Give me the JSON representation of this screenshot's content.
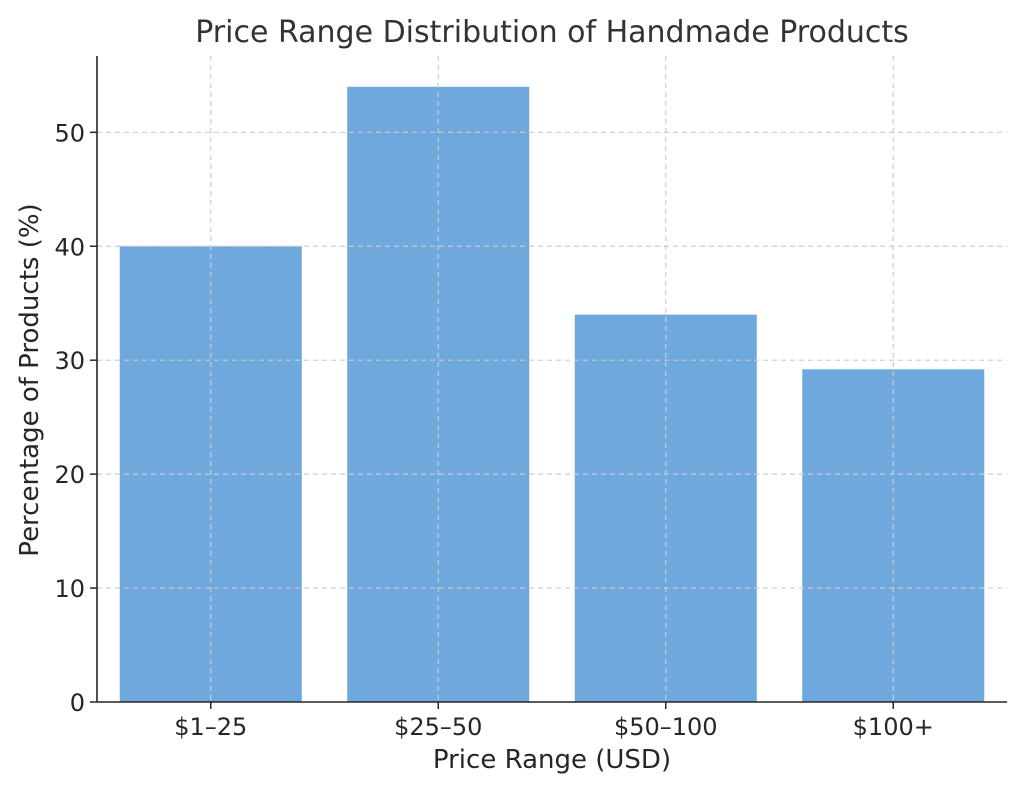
{
  "chart_data": {
    "type": "bar",
    "title": "Price Range Distribution of Handmade Products",
    "xlabel": "Price Range (USD)",
    "ylabel": "Percentage of Products (%)",
    "categories": [
      "$1–25",
      "$25–50",
      "$50–100",
      "$100+"
    ],
    "values": [
      40,
      54,
      34,
      29.2
    ],
    "ylim": [
      0,
      56.7
    ],
    "yticks": [
      0,
      10,
      20,
      30,
      40,
      50
    ],
    "grid": true,
    "bar_color": "#6fa8dc",
    "axis_color": "#262626",
    "grid_color": "#cccccc",
    "text_color": "#333333"
  }
}
